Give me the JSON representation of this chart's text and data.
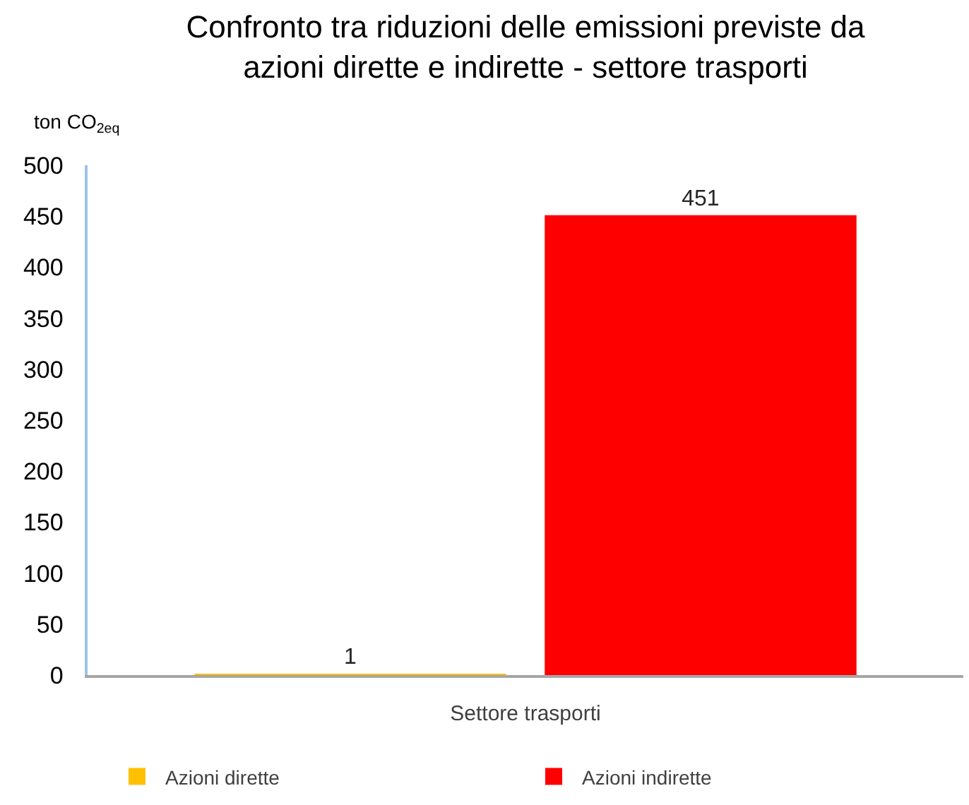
{
  "chart_data": {
    "type": "bar",
    "title": "Confronto tra riduzioni delle emissioni previste da azioni dirette e indirette - settore trasporti",
    "ylabel": "ton CO$_{2eq}$",
    "categories": [
      "Settore trasporti"
    ],
    "series": [
      {
        "name": "Azioni dirette",
        "color": "#ffc000",
        "values": [
          1
        ]
      },
      {
        "name": "Azioni indirette",
        "color": "#ff0000",
        "values": [
          451
        ]
      }
    ],
    "ylim": [
      0,
      500
    ],
    "yticks": [
      0,
      50,
      100,
      150,
      200,
      250,
      300,
      350,
      400,
      450,
      500
    ],
    "data_labels": true,
    "legend": "bottom"
  }
}
